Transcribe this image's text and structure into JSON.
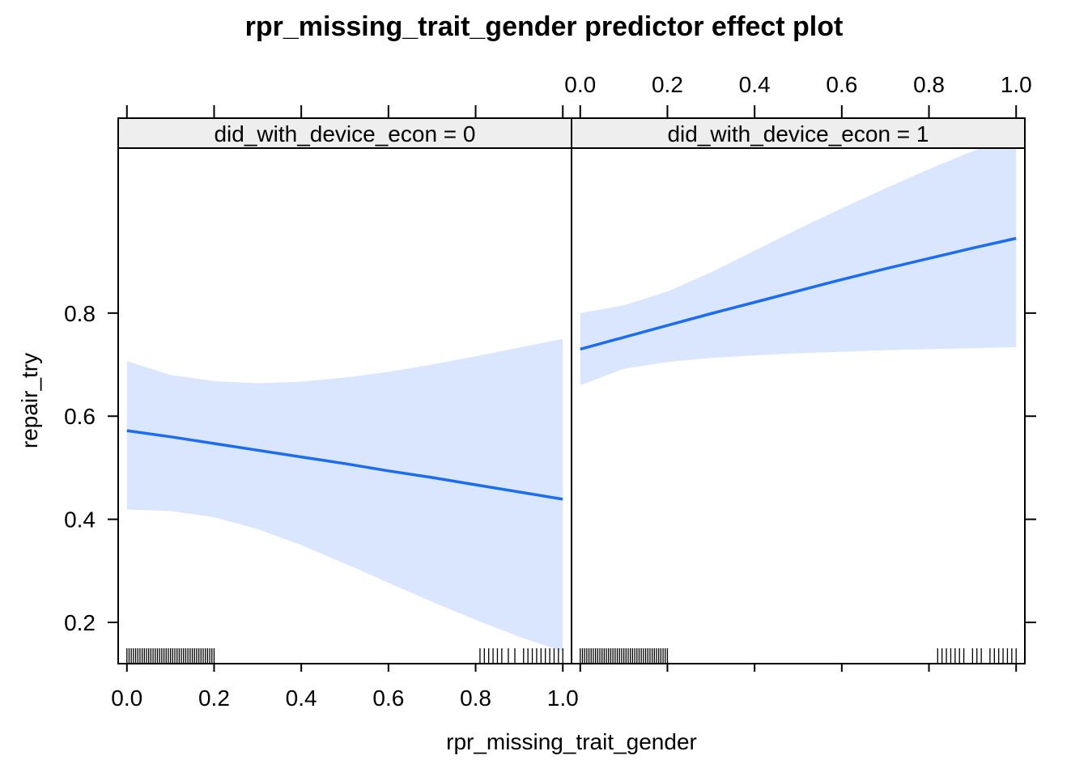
{
  "chart_data": {
    "type": "line",
    "title": "rpr_missing_trait_gender predictor effect plot",
    "xlabel": "rpr_missing_trait_gender",
    "ylabel": "repair_try",
    "xlim": [
      -0.02,
      1.02
    ],
    "ylim": [
      0.12,
      1.12
    ],
    "x_ticks": [
      0.0,
      0.2,
      0.4,
      0.6,
      0.8,
      1.0
    ],
    "x_tick_labels": [
      "0.0",
      "0.2",
      "0.4",
      "0.6",
      "0.8",
      "1.0"
    ],
    "y_ticks": [
      0.2,
      0.4,
      0.6,
      0.8
    ],
    "y_tick_labels": [
      "0.2",
      "0.4",
      "0.6",
      "0.8"
    ],
    "colors": {
      "line": "#1a6cf5",
      "band": "#dae6fd",
      "strip": "#eeeeee"
    },
    "panels": [
      {
        "strip_label": "did_with_device_econ = 0",
        "x": [
          0.0,
          0.1,
          0.2,
          0.3,
          0.4,
          0.5,
          0.6,
          0.7,
          0.8,
          0.9,
          1.0
        ],
        "fit": [
          0.572,
          0.56,
          0.547,
          0.534,
          0.521,
          0.508,
          0.494,
          0.481,
          0.467,
          0.453,
          0.439
        ],
        "lower": [
          0.419,
          0.416,
          0.404,
          0.381,
          0.35,
          0.314,
          0.277,
          0.24,
          0.205,
          0.172,
          0.144
        ],
        "upper": [
          0.707,
          0.68,
          0.668,
          0.664,
          0.667,
          0.675,
          0.686,
          0.7,
          0.716,
          0.733,
          0.75
        ],
        "rug": [
          0.0,
          0.005,
          0.01,
          0.015,
          0.02,
          0.025,
          0.03,
          0.035,
          0.04,
          0.045,
          0.05,
          0.055,
          0.06,
          0.065,
          0.07,
          0.075,
          0.08,
          0.085,
          0.09,
          0.095,
          0.1,
          0.105,
          0.11,
          0.115,
          0.12,
          0.125,
          0.13,
          0.135,
          0.14,
          0.145,
          0.15,
          0.155,
          0.16,
          0.165,
          0.17,
          0.175,
          0.18,
          0.185,
          0.19,
          0.195,
          0.2,
          0.81,
          0.82,
          0.83,
          0.84,
          0.85,
          0.86,
          0.875,
          0.89,
          0.91,
          0.92,
          0.93,
          0.94,
          0.95,
          0.96,
          0.97,
          0.98,
          0.99,
          1.0
        ]
      },
      {
        "strip_label": "did_with_device_econ = 1",
        "x": [
          0.0,
          0.1,
          0.2,
          0.3,
          0.4,
          0.5,
          0.6,
          0.7,
          0.8,
          0.9,
          1.0
        ],
        "fit": [
          0.73,
          0.753,
          0.776,
          0.799,
          0.821,
          0.843,
          0.865,
          0.886,
          0.906,
          0.926,
          0.945
        ],
        "lower": [
          0.66,
          0.692,
          0.705,
          0.713,
          0.718,
          0.722,
          0.725,
          0.728,
          0.73,
          0.732,
          0.734
        ],
        "upper": [
          0.8,
          0.815,
          0.842,
          0.879,
          0.921,
          0.963,
          1.003,
          1.042,
          1.079,
          1.114,
          1.148
        ],
        "rug": [
          0.0,
          0.005,
          0.01,
          0.015,
          0.02,
          0.025,
          0.03,
          0.035,
          0.04,
          0.045,
          0.05,
          0.055,
          0.06,
          0.065,
          0.07,
          0.075,
          0.08,
          0.085,
          0.09,
          0.095,
          0.1,
          0.105,
          0.11,
          0.115,
          0.12,
          0.125,
          0.13,
          0.135,
          0.14,
          0.145,
          0.15,
          0.155,
          0.16,
          0.165,
          0.17,
          0.175,
          0.18,
          0.185,
          0.19,
          0.195,
          0.2,
          0.82,
          0.83,
          0.84,
          0.85,
          0.86,
          0.87,
          0.88,
          0.9,
          0.91,
          0.92,
          0.94,
          0.95,
          0.96,
          0.97,
          0.98,
          0.99,
          1.0
        ]
      }
    ]
  }
}
